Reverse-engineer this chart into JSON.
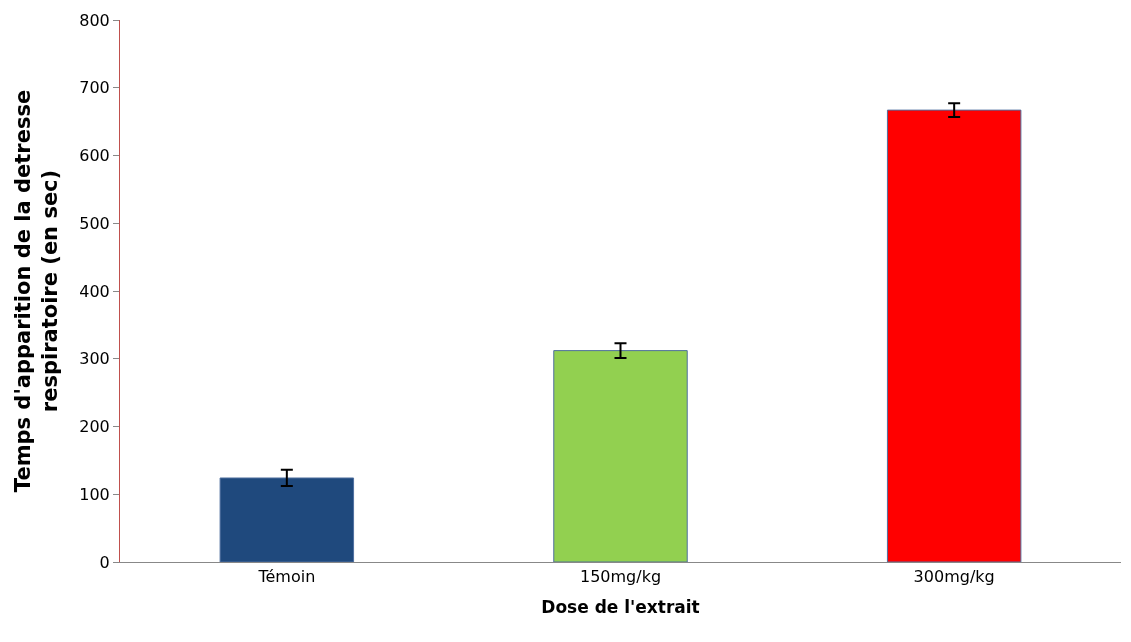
{
  "chart_data": {
    "type": "bar",
    "xlabel": "Dose de l'extrait",
    "ylabel": "Temps d'apparition de la detresse respiratoire (en sec)",
    "categories": [
      "Témoin",
      "150mg/kg",
      "300mg/kg"
    ],
    "values": [
      124,
      312,
      667
    ],
    "errors": [
      12,
      11,
      10
    ],
    "colors": [
      "#1f497d",
      "#92d050",
      "#ff0000"
    ],
    "ylim": [
      0,
      800
    ],
    "yticks": [
      0,
      100,
      200,
      300,
      400,
      500,
      600,
      700,
      800
    ]
  }
}
